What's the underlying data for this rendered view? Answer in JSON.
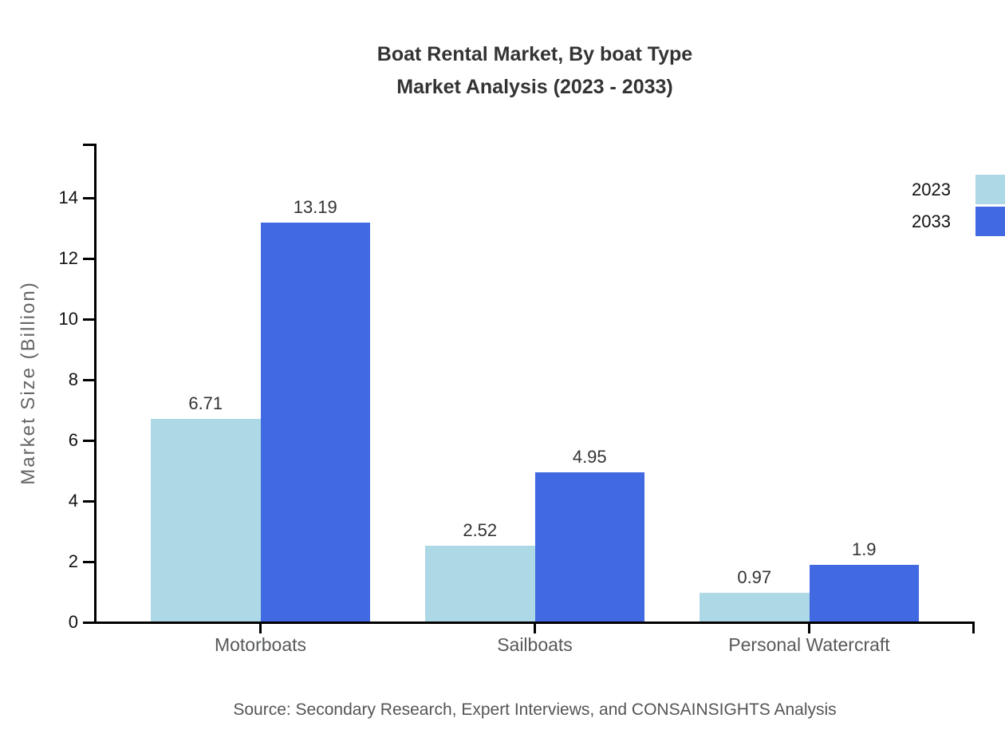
{
  "header": {
    "title_line1": "Boat Rental Market, By boat Type",
    "title_line2": "Market Analysis (2023 - 2033)"
  },
  "footer": {
    "source": "Source: Secondary Research, Expert Interviews, and CONSAINSIGHTS Analysis"
  },
  "chart_data": {
    "type": "bar",
    "title": "Boat Rental Market, By boat Type Market Analysis (2023 - 2033)",
    "categories": [
      "Motorboats",
      "Sailboats",
      "Personal Watercraft"
    ],
    "series": [
      {
        "name": "2023",
        "color": "#ADD8E6",
        "values": [
          6.71,
          2.52,
          0.97
        ]
      },
      {
        "name": "2033",
        "color": "#4169E1",
        "values": [
          13.19,
          4.95,
          1.9
        ]
      }
    ],
    "value_labels": [
      [
        "6.71",
        "2.52",
        "0.97"
      ],
      [
        "13.19",
        "4.95",
        "1.9"
      ]
    ],
    "xlabel": "",
    "ylabel": "Market Size (Billion)",
    "yticks": [
      0,
      2,
      4,
      6,
      8,
      10,
      12,
      14
    ],
    "ylim": [
      0,
      15.8
    ],
    "grid": false,
    "legend": {
      "position": "top-right",
      "entries": [
        "2023",
        "2033"
      ]
    },
    "axis_color": "#000000",
    "background_color": "#ffffff"
  }
}
